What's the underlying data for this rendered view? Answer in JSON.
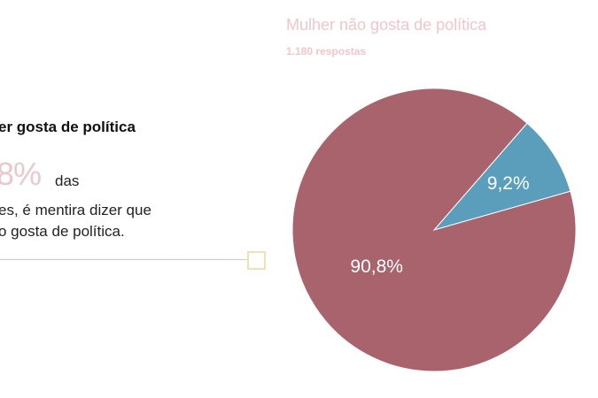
{
  "text_panel": {
    "heading": "er gosta de política",
    "big_value": "8%",
    "das": "das",
    "line1": "es, é mentira dizer que",
    "line2": "o gosta de política.",
    "slider_value": 1.0
  },
  "chart_data": {
    "type": "pie",
    "title": "Mulher não gosta de política",
    "subtitle": "1.180 respostas",
    "slices": [
      {
        "label": "9,2%",
        "value": 9.2,
        "color": "#5b9ebb"
      },
      {
        "label": "90,8%",
        "value": 90.8,
        "color": "#a8636c"
      }
    ]
  }
}
